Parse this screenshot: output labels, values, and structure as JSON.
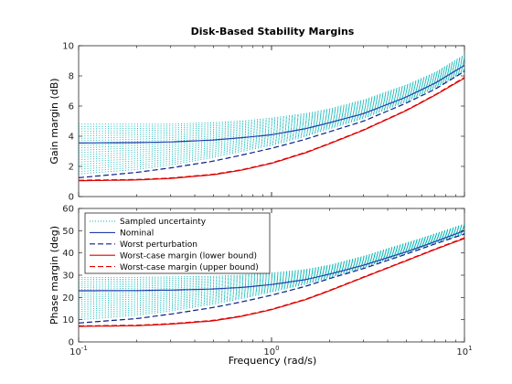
{
  "chart_data": {
    "type": "line",
    "title": "Disk-Based Stability Margins",
    "xlabel": "Frequency (rad/s)",
    "xscale": "log",
    "xlim": [
      0.1,
      10
    ],
    "xtick_labels": [
      {
        "base": "10",
        "exp": "-1",
        "value": 0.1
      },
      {
        "base": "10",
        "exp": "0",
        "value": 1
      },
      {
        "base": "10",
        "exp": "1",
        "value": 10
      }
    ],
    "legend_position": "top-left of lower panel",
    "colors": {
      "sampled": "#00b3b3",
      "nominal": "#1f3fa8",
      "worst_perturbation": "#0b1f8a",
      "worst_case": "#e00000"
    },
    "legend": [
      {
        "label": "Sampled uncertainty",
        "style": "dotted",
        "color": "#00b3b3"
      },
      {
        "label": "Nominal",
        "style": "solid",
        "color": "#1f3fa8"
      },
      {
        "label": "Worst perturbation",
        "style": "dashed",
        "color": "#0b1f8a"
      },
      {
        "label": "Worst-case margin (lower bound)",
        "style": "solid",
        "color": "#e00000"
      },
      {
        "label": "Worst-case margin (upper bound)",
        "style": "dashed",
        "color": "#e00000"
      }
    ],
    "panels": [
      {
        "ylabel": "Gain margin (dB)",
        "ylim": [
          0,
          10
        ],
        "yticks": [
          0,
          2,
          4,
          6,
          8,
          10
        ],
        "x": [
          0.1,
          0.2,
          0.3,
          0.5,
          0.7,
          1,
          1.5,
          2,
          3,
          5,
          7,
          10
        ],
        "series": [
          {
            "name": "Nominal",
            "values": [
              3.55,
              3.58,
              3.62,
              3.75,
              3.9,
              4.1,
              4.5,
              4.9,
              5.5,
              6.6,
              7.5,
              8.7
            ]
          },
          {
            "name": "Worst perturbation",
            "values": [
              1.25,
              1.6,
              1.9,
              2.35,
              2.75,
              3.2,
              3.8,
              4.3,
              5.0,
              6.2,
              7.1,
              8.3
            ]
          },
          {
            "name": "Worst-case margin (lower bound)",
            "values": [
              1.05,
              1.1,
              1.2,
              1.45,
              1.75,
              2.2,
              2.9,
              3.5,
              4.4,
              5.7,
              6.7,
              7.85
            ]
          },
          {
            "name": "Worst-case margin (upper bound)",
            "values": [
              1.08,
              1.13,
              1.23,
              1.48,
              1.78,
              2.23,
              2.93,
              3.53,
              4.43,
              5.73,
              6.73,
              7.9
            ]
          }
        ],
        "sampled_band": {
          "low": [
            1.5,
            1.8,
            2.1,
            2.6,
            3.0,
            3.4,
            4.0,
            4.5,
            5.2,
            6.3,
            7.2,
            8.3
          ],
          "high": [
            4.8,
            4.8,
            4.8,
            4.9,
            5.0,
            5.2,
            5.5,
            5.8,
            6.4,
            7.4,
            8.2,
            9.4
          ]
        }
      },
      {
        "ylabel": "Phase margin (deg)",
        "ylim": [
          0,
          60
        ],
        "yticks": [
          0,
          10,
          20,
          30,
          40,
          50,
          60
        ],
        "x": [
          0.1,
          0.2,
          0.3,
          0.5,
          0.7,
          1,
          1.5,
          2,
          3,
          5,
          7,
          10
        ],
        "series": [
          {
            "name": "Nominal",
            "values": [
              23,
              23.1,
              23.3,
              23.8,
              24.5,
              25.8,
              28,
              30.5,
              34.5,
              40.5,
              45,
              50
            ]
          },
          {
            "name": "Worst perturbation",
            "values": [
              8.5,
              10.5,
              12.5,
              15.5,
              18,
              21,
              25,
              28.5,
              33,
              39.5,
              44,
              48.5
            ]
          },
          {
            "name": "Worst-case margin (lower bound)",
            "values": [
              7,
              7.3,
              8,
              9.5,
              11.5,
              14.5,
              19,
              23,
              29,
              36.5,
              41.5,
              46.5
            ]
          },
          {
            "name": "Worst-case margin (upper bound)",
            "values": [
              7.2,
              7.5,
              8.2,
              9.7,
              11.7,
              14.7,
              19.2,
              23.2,
              29.2,
              36.7,
              41.7,
              46.8
            ]
          }
        ],
        "sampled_band": {
          "low": [
            10,
            12,
            14,
            17,
            19.5,
            22.5,
            26,
            29,
            33.5,
            40,
            44.5,
            48.5
          ],
          "high": [
            29,
            29,
            29.2,
            29.5,
            30,
            31,
            32.5,
            34.5,
            38.5,
            44.5,
            48.5,
            53
          ]
        }
      }
    ]
  }
}
